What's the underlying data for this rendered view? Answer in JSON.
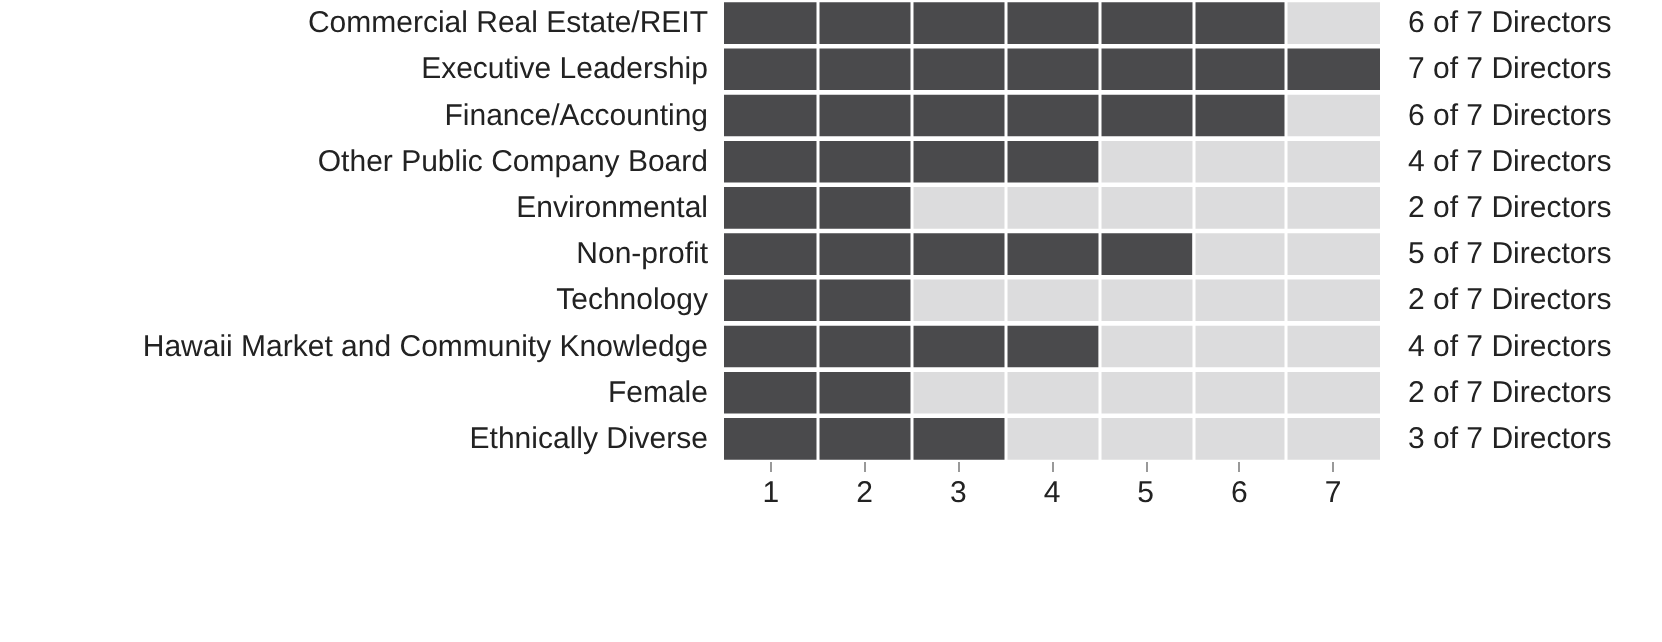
{
  "chart_data": {
    "type": "bar",
    "orientation": "horizontal",
    "stacked": true,
    "categories": [
      "Commercial Real Estate/REIT",
      "Executive Leadership",
      "Finance/Accounting",
      "Other Public Company Board",
      "Environmental",
      "Non-profit",
      "Technology",
      "Hawaii Market and Community Knowledge",
      "Female",
      "Ethnically Diverse"
    ],
    "series": [
      {
        "color": "#4a4a4c",
        "values": [
          6,
          7,
          6,
          4,
          2,
          5,
          2,
          4,
          2,
          3
        ],
        "value_labels": [
          "6 of 7 Directors",
          "7 of 7 Directors",
          "6 of 7 Directors",
          "4 of 7 Directors",
          "2 of 7 Directors",
          "5 of 7 Directors",
          "2 of 7 Directors",
          "4 of 7 Directors",
          "2 of 7 Directors",
          "3 of 7 Directors"
        ]
      },
      {
        "color": "#dcdcdd",
        "values": [
          1,
          0,
          1,
          3,
          5,
          2,
          5,
          3,
          5,
          4
        ]
      }
    ],
    "xlim": [
      0,
      7
    ],
    "xticks": [
      {
        "value": 0.5,
        "label": "1"
      },
      {
        "value": 1.5,
        "label": "2"
      },
      {
        "value": 2.5,
        "label": "3"
      },
      {
        "value": 3.5,
        "label": "4"
      },
      {
        "value": 4.5,
        "label": "5"
      },
      {
        "value": 5.5,
        "label": "6"
      },
      {
        "value": 6.5,
        "label": "7"
      }
    ],
    "grid": "x"
  }
}
